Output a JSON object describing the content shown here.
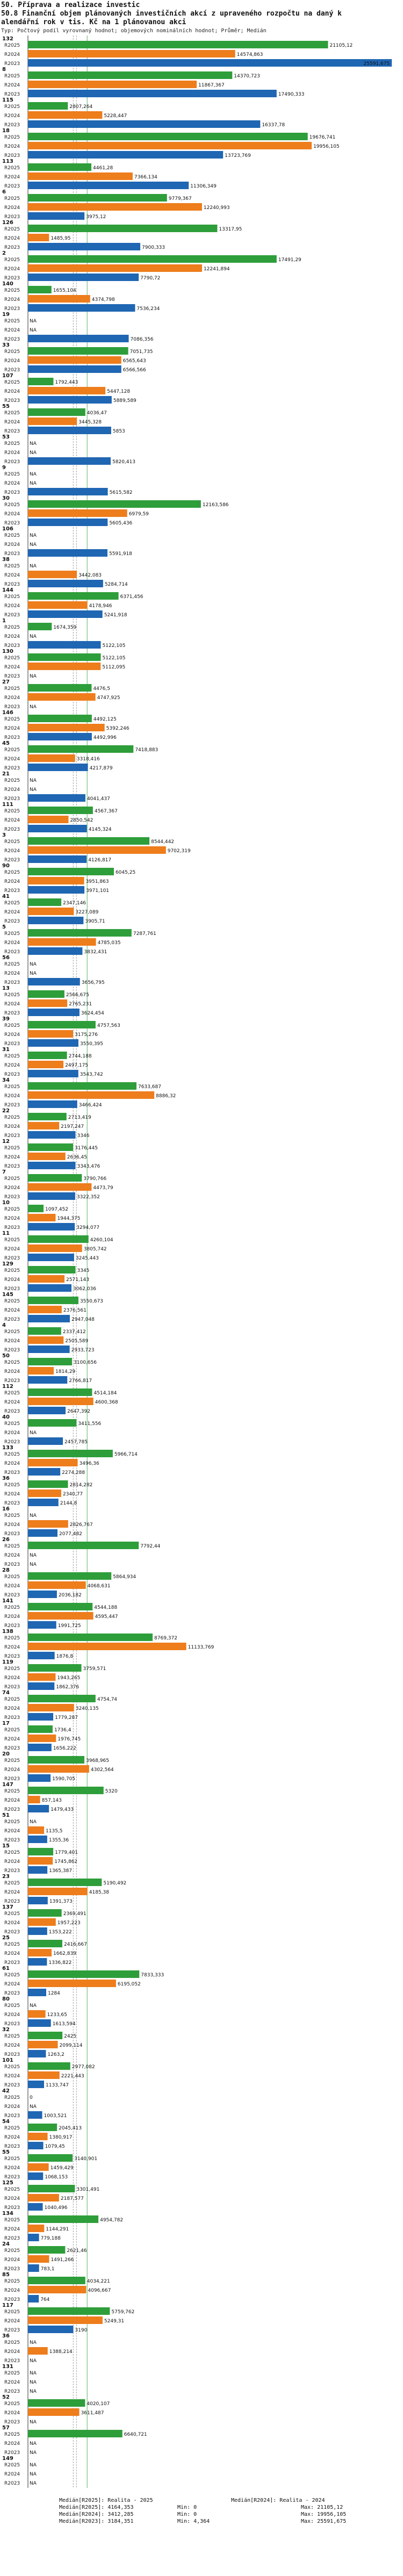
{
  "header": {
    "line1": "50. Příprava a realizace investic",
    "line2": "50.8 Finanční objem plánovaných investičních akcí z upraveného rozpočtu na daný k",
    "line3": "alendářní rok v tis. Kč na 1 plánovanou akci",
    "line4": "Typ: Počtový podíl vyrovnaný hodnot; objemových nominálních hodnot; Průměr; Medián"
  },
  "colors": {
    "R2025": "#2e9e3a",
    "R2024": "#ee7d1c",
    "R2023": "#1f66b3",
    "median": "#2e9e3a",
    "grid": "#999999"
  },
  "legend": {
    "rows": [
      [
        "Medián[R2025]: Realita - 2025",
        "Medián[R2024]: Realita - 2024"
      ],
      [
        "Medián[R2025]: 4164,353",
        "Min: 0",
        "Max: 21105,12"
      ],
      [
        "Medián[R2024]: 3412,285",
        "Min: 0",
        "Max: 19956,105"
      ],
      [
        "Medián[R2023]: 3184,351",
        "Min: 4,364",
        "Max: 25591,675"
      ]
    ]
  },
  "chart_data": {
    "type": "bar",
    "orientation": "horizontal",
    "series_keys": [
      "R2025",
      "R2024",
      "R2023"
    ],
    "xlim": [
      0,
      26000
    ],
    "medians": [
      4164.353,
      3412.285,
      3184.351
    ],
    "groups": [
      {
        "id": "132",
        "values": [
          21105.12,
          14574.863,
          25591.675
        ],
        "labels": [
          "21105,12",
          "14574,863",
          "25591,675"
        ]
      },
      {
        "id": "8",
        "values": [
          14370.723,
          11867.367,
          17490.333
        ],
        "labels": [
          "14370,723",
          "11867,367",
          "17490,333"
        ]
      },
      {
        "id": "115",
        "values": [
          2807.264,
          5228.447,
          16337.78
        ],
        "labels": [
          "2807,264",
          "5228,447",
          "16337,78"
        ]
      },
      {
        "id": "18",
        "values": [
          19676.741,
          19956.105,
          13723.769
        ],
        "labels": [
          "19676,741",
          "19956,105",
          "13723,769"
        ]
      },
      {
        "id": "113",
        "values": [
          4461.28,
          7366.134,
          11306.349
        ],
        "labels": [
          "4461,28",
          "7366,134",
          "11306,349"
        ]
      },
      {
        "id": "6",
        "values": [
          9779.367,
          12240.993,
          3975.12
        ],
        "labels": [
          "9779,367",
          "12240,993",
          "3975,12"
        ]
      },
      {
        "id": "126",
        "values": [
          13317.95,
          1485.95,
          7900.333
        ],
        "labels": [
          "13317,95",
          "1485,95",
          "7900,333"
        ]
      },
      {
        "id": "2",
        "values": [
          17491.29,
          12241.894,
          7790.72
        ],
        "labels": [
          "17491,29",
          "12241,894",
          "7790,72"
        ]
      },
      {
        "id": "140",
        "values": [
          1655.104,
          4374.798,
          7536.234
        ],
        "labels": [
          "1655,104",
          "4374,798",
          "7536,234"
        ]
      },
      {
        "id": "19",
        "values": [
          null,
          null,
          7086.356
        ],
        "labels": [
          "NA",
          "NA",
          "7086,356"
        ]
      },
      {
        "id": "33",
        "values": [
          7051.735,
          6565.643,
          6566.566
        ],
        "labels": [
          "7051,735",
          "6565,643",
          "6566,566"
        ]
      },
      {
        "id": "107",
        "values": [
          1792.443,
          5447.128,
          5889.589
        ],
        "labels": [
          "1792,443",
          "5447,128",
          "5889,589"
        ]
      },
      {
        "id": "55",
        "values": [
          4036.47,
          3445.328,
          5853
        ],
        "labels": [
          "4036,47",
          "3445,328",
          "5853"
        ]
      },
      {
        "id": "53",
        "values": [
          null,
          null,
          5820.413
        ],
        "labels": [
          "NA",
          "NA",
          "5820,413"
        ]
      },
      {
        "id": "9",
        "values": [
          null,
          null,
          5615.582
        ],
        "labels": [
          "NA",
          "NA",
          "5615,582"
        ]
      },
      {
        "id": "30",
        "values": [
          12163.586,
          6979.59,
          5605.436
        ],
        "labels": [
          "12163,586",
          "6979,59",
          "5605,436"
        ]
      },
      {
        "id": "106",
        "values": [
          null,
          null,
          5591.918
        ],
        "labels": [
          "NA",
          "NA",
          "5591,918"
        ]
      },
      {
        "id": "38",
        "values": [
          null,
          3442.083,
          5284.714
        ],
        "labels": [
          "NA",
          "3442,083",
          "5284,714"
        ]
      },
      {
        "id": "144",
        "values": [
          6371.456,
          4178.946,
          5241.918
        ],
        "labels": [
          "6371,456",
          "4178,946",
          "5241,918"
        ]
      },
      {
        "id": "1",
        "values": [
          1674.359,
          null,
          5122.105
        ],
        "labels": [
          "1674,359",
          "NA",
          "5122,105"
        ]
      },
      {
        "id": "130",
        "values": [
          5122.105,
          5112.095,
          null
        ],
        "labels": [
          "5122,105",
          "5112,095",
          "NA"
        ]
      },
      {
        "id": "27",
        "values": [
          4476.5,
          4747.925,
          null
        ],
        "labels": [
          "4476,5",
          "4747,925",
          "NA"
        ]
      },
      {
        "id": "146",
        "values": [
          4492.125,
          5392.246,
          4492.996
        ],
        "labels": [
          "4492,125",
          "5392,246",
          "4492,996"
        ]
      },
      {
        "id": "45",
        "values": [
          7418.883,
          3318.416,
          4217.879
        ],
        "labels": [
          "7418,883",
          "3318,416",
          "4217,879"
        ]
      },
      {
        "id": "21",
        "values": [
          null,
          null,
          4041.437
        ],
        "labels": [
          "NA",
          "NA",
          "4041,437"
        ]
      },
      {
        "id": "111",
        "values": [
          4567.367,
          2850.542,
          4145.324
        ],
        "labels": [
          "4567,367",
          "2850,542",
          "4145,324"
        ]
      },
      {
        "id": "3",
        "values": [
          8544.442,
          9702.319,
          4126.817
        ],
        "labels": [
          "8544,442",
          "9702,319",
          "4126,817"
        ]
      },
      {
        "id": "90",
        "values": [
          6045.25,
          3951.863,
          3971.101
        ],
        "labels": [
          "6045,25",
          "3951,863",
          "3971,101"
        ]
      },
      {
        "id": "41",
        "values": [
          2347.146,
          3227.089,
          3905.71
        ],
        "labels": [
          "2347,146",
          "3227,089",
          "3905,71"
        ]
      },
      {
        "id": "5",
        "values": [
          7287.761,
          4785.035,
          3832.431
        ],
        "labels": [
          "7287,761",
          "4785,035",
          "3832,431"
        ]
      },
      {
        "id": "56",
        "values": [
          null,
          null,
          3656.795
        ],
        "labels": [
          "NA",
          "NA",
          "3656,795"
        ]
      },
      {
        "id": "13",
        "values": [
          2566.675,
          2765.231,
          3624.454
        ],
        "labels": [
          "2566,675",
          "2765,231",
          "3624,454"
        ]
      },
      {
        "id": "39",
        "values": [
          4757.563,
          3175.276,
          3550.395
        ],
        "labels": [
          "4757,563",
          "3175,276",
          "3550,395"
        ]
      },
      {
        "id": "31",
        "values": [
          2744.188,
          2497.175,
          3543.742
        ],
        "labels": [
          "2744,188",
          "2497,175",
          "3543,742"
        ]
      },
      {
        "id": "34",
        "values": [
          7633.687,
          8886.32,
          3466.424
        ],
        "labels": [
          "7633,687",
          "8886,32",
          "3466,424"
        ]
      },
      {
        "id": "22",
        "values": [
          2713.419,
          2197.247,
          3346
        ],
        "labels": [
          "2713,419",
          "2197,247",
          "3346"
        ]
      },
      {
        "id": "12",
        "values": [
          3176.445,
          2636.45,
          3343.476
        ],
        "labels": [
          "3176,445",
          "2636,45",
          "3343,476"
        ]
      },
      {
        "id": "7",
        "values": [
          3790.766,
          4473.79,
          3322.352
        ],
        "labels": [
          "3790,766",
          "4473,79",
          "3322,352"
        ]
      },
      {
        "id": "10",
        "values": [
          1097.452,
          1944.375,
          3294.077
        ],
        "labels": [
          "1097,452",
          "1944,375",
          "3294,077"
        ]
      },
      {
        "id": "11",
        "values": [
          4260.104,
          3805.742,
          3245.443
        ],
        "labels": [
          "4260,104",
          "3805,742",
          "3245,443"
        ]
      },
      {
        "id": "129",
        "values": [
          3345,
          2571.143,
          3062.036
        ],
        "labels": [
          "3345",
          "2571,143",
          "3062,036"
        ]
      },
      {
        "id": "145",
        "values": [
          3550.673,
          2376.561,
          2947.048
        ],
        "labels": [
          "3550,673",
          "2376,561",
          "2947,048"
        ]
      },
      {
        "id": "4",
        "values": [
          2337.412,
          2505.589,
          2933.723
        ],
        "labels": [
          "2337,412",
          "2505,589",
          "2933,723"
        ]
      },
      {
        "id": "50",
        "values": [
          3100.656,
          1814.29,
          2766.817
        ],
        "labels": [
          "3100,656",
          "1814,29",
          "2766,817"
        ]
      },
      {
        "id": "112",
        "values": [
          4514.184,
          4600.368,
          2647.392
        ],
        "labels": [
          "4514,184",
          "4600,368",
          "2647,392"
        ]
      },
      {
        "id": "40",
        "values": [
          3411.556,
          null,
          2457.785
        ],
        "labels": [
          "3411,556",
          "NA",
          "2457,785"
        ]
      },
      {
        "id": "133",
        "values": [
          5966.714,
          3496.36,
          2274.288
        ],
        "labels": [
          "5966,714",
          "3496,36",
          "2274,288"
        ]
      },
      {
        "id": "36",
        "values": [
          2814.282,
          2340.77,
          2144.8
        ],
        "labels": [
          "2814,282",
          "2340,77",
          "2144,8"
        ]
      },
      {
        "id": "16",
        "values": [
          null,
          2826.767,
          2077.482
        ],
        "labels": [
          "NA",
          "2826,767",
          "2077,482"
        ]
      },
      {
        "id": "26",
        "values": [
          7792.44,
          null,
          null
        ],
        "labels": [
          "7792,44",
          "NA",
          "NA"
        ]
      },
      {
        "id": "28",
        "values": [
          5864.934,
          4068.631,
          2036.182
        ],
        "labels": [
          "5864,934",
          "4068,631",
          "2036,182"
        ]
      },
      {
        "id": "141",
        "values": [
          4544.188,
          4595.447,
          1991.725
        ],
        "labels": [
          "4544,188",
          "4595,447",
          "1991,725"
        ]
      },
      {
        "id": "138",
        "values": [
          8769.372,
          11133.769,
          1876.8
        ],
        "labels": [
          "8769,372",
          "11133,769",
          "1876,8"
        ]
      },
      {
        "id": "119",
        "values": [
          3759.571,
          1943.265,
          1862.376
        ],
        "labels": [
          "3759,571",
          "1943,265",
          "1862,376"
        ]
      },
      {
        "id": "74",
        "values": [
          4754.74,
          3240.135,
          1779.287
        ],
        "labels": [
          "4754,74",
          "3240,135",
          "1779,287"
        ]
      },
      {
        "id": "17",
        "values": [
          1736.4,
          1976.745,
          1656.222
        ],
        "labels": [
          "1736,4",
          "1976,745",
          "1656,222"
        ]
      },
      {
        "id": "20",
        "values": [
          3968.965,
          4302.564,
          1590.705
        ],
        "labels": [
          "3968,965",
          "4302,564",
          "1590,705"
        ]
      },
      {
        "id": "147",
        "values": [
          5320,
          857.143,
          1479.433
        ],
        "labels": [
          "5320",
          "857,143",
          "1479,433"
        ]
      },
      {
        "id": "51",
        "values": [
          null,
          1135.5,
          1355.36
        ],
        "labels": [
          "NA",
          "1135,5",
          "1355,36"
        ]
      },
      {
        "id": "15",
        "values": [
          1779.401,
          1745.862,
          1365.387
        ],
        "labels": [
          "1779,401",
          "1745,862",
          "1365,387"
        ]
      },
      {
        "id": "23",
        "values": [
          5190.492,
          4185.38,
          1391.373
        ],
        "labels": [
          "5190,492",
          "4185,38",
          "1391,373"
        ]
      },
      {
        "id": "137",
        "values": [
          2369.491,
          1957.223,
          1353.222
        ],
        "labels": [
          "2369,491",
          "1957,223",
          "1353,222"
        ]
      },
      {
        "id": "25",
        "values": [
          2416.667,
          1662.839,
          1336.822
        ],
        "labels": [
          "2416,667",
          "1662,839",
          "1336,822"
        ]
      },
      {
        "id": "61",
        "values": [
          7833.333,
          6195.052,
          1284
        ],
        "labels": [
          "7833,333",
          "6195,052",
          "1284"
        ]
      },
      {
        "id": "80",
        "values": [
          null,
          1233.65,
          1613.594
        ],
        "labels": [
          "NA",
          "1233,65",
          "1613,594"
        ]
      },
      {
        "id": "32",
        "values": [
          2425,
          2099.114,
          1263.2
        ],
        "labels": [
          "2425",
          "2099,114",
          "1263,2"
        ]
      },
      {
        "id": "101",
        "values": [
          2977.082,
          2221.443,
          1133.747
        ],
        "labels": [
          "2977,082",
          "2221,443",
          "1133,747"
        ]
      },
      {
        "id": "42",
        "values": [
          0,
          null,
          1003.521
        ],
        "labels": [
          "0",
          "NA",
          "1003,521"
        ]
      },
      {
        "id": "54",
        "values": [
          2045.413,
          1380.917,
          1079.45
        ],
        "labels": [
          "2045,413",
          "1380,917",
          "1079,45"
        ]
      },
      {
        "id": "55",
        "values": [
          3140.901,
          1459.429,
          1068.153
        ],
        "labels": [
          "3140,901",
          "1459,429",
          "1068,153"
        ]
      },
      {
        "id": "125",
        "values": [
          3301.491,
          2187.577,
          1040.496
        ],
        "labels": [
          "3301,491",
          "2187,577",
          "1040,496"
        ]
      },
      {
        "id": "134",
        "values": [
          4954.782,
          1144.291,
          779.188
        ],
        "labels": [
          "4954,782",
          "1144,291",
          "779,188"
        ]
      },
      {
        "id": "24",
        "values": [
          2621.46,
          1491.266,
          783.1
        ],
        "labels": [
          "2621,46",
          "1491,266",
          "783,1"
        ]
      },
      {
        "id": "85",
        "values": [
          4034.221,
          4096.667,
          764
        ],
        "labels": [
          "4034,221",
          "4096,667",
          "764"
        ]
      },
      {
        "id": "117",
        "values": [
          5759.762,
          5249.31,
          3190
        ],
        "labels": [
          "5759,762",
          "5249,31",
          "3190"
        ]
      },
      {
        "id": "36",
        "values": [
          null,
          1388.214,
          null
        ],
        "labels": [
          "NA",
          "1388,214",
          "NA"
        ]
      },
      {
        "id": "131",
        "values": [
          null,
          null,
          null
        ],
        "labels": [
          "NA",
          "NA",
          "NA"
        ]
      },
      {
        "id": "52",
        "values": [
          4020.107,
          3611.487,
          null
        ],
        "labels": [
          "4020,107",
          "3611,487",
          "NA"
        ]
      },
      {
        "id": "57",
        "values": [
          6640.721,
          null,
          null
        ],
        "labels": [
          "6640,721",
          "NA",
          "NA"
        ]
      },
      {
        "id": "149",
        "values": [
          null,
          null,
          null
        ],
        "labels": [
          "NA",
          "NA",
          "NA"
        ]
      }
    ]
  }
}
